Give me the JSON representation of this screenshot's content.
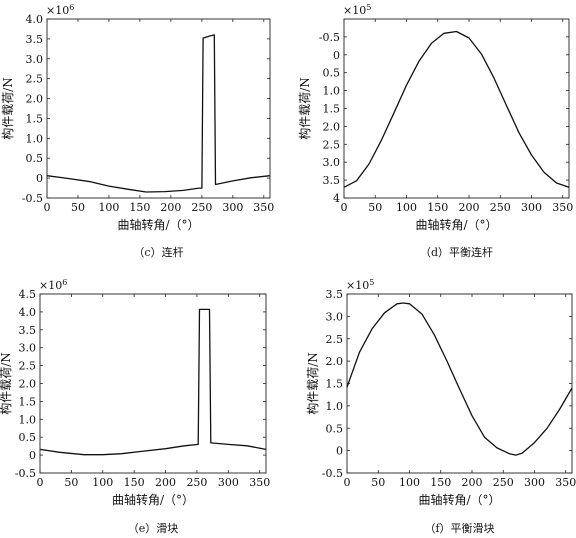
{
  "chart_data": [
    {
      "id": "c",
      "type": "line",
      "caption": "（c）连杆",
      "xlabel": "曲轴转角/（°）",
      "ylabel": "构件载荷/N",
      "exponent": "×10",
      "exponent_power": "6",
      "xlim": [
        0,
        360
      ],
      "ylim": [
        -0.5,
        4.0
      ],
      "xticks": [
        0,
        50,
        100,
        150,
        200,
        250,
        300,
        350
      ],
      "yticks": [
        -0.5,
        0,
        0.5,
        1.0,
        1.5,
        2.0,
        2.5,
        3.0,
        3.5,
        4.0
      ],
      "ytick_labels": [
        "-0.5",
        "0",
        "0.5",
        "1.0",
        "1.5",
        "2.0",
        "2.5",
        "3.0",
        "3.5",
        "4.0"
      ],
      "series": [
        {
          "x": [
            0,
            30,
            70,
            100,
            130,
            160,
            190,
            220,
            245,
            250,
            252,
            262,
            270,
            272,
            300,
            330,
            360
          ],
          "y": [
            0.06,
            0.0,
            -0.09,
            -0.2,
            -0.28,
            -0.35,
            -0.34,
            -0.31,
            -0.25,
            -0.25,
            3.52,
            3.57,
            3.6,
            -0.16,
            -0.07,
            0.01,
            0.06
          ]
        }
      ]
    },
    {
      "id": "d",
      "type": "line",
      "caption": "（d）平衡连杆",
      "xlabel": "曲轴转角/（°）",
      "ylabel": "构件载荷/N",
      "exponent": "×10",
      "exponent_power": "5",
      "xlim": [
        0,
        360
      ],
      "ylim": [
        -4.0,
        1.0
      ],
      "yreverse": true,
      "xticks": [
        0,
        50,
        100,
        150,
        200,
        250,
        300,
        350
      ],
      "yticks": [
        0.5,
        0,
        -0.5,
        -1.0,
        -1.5,
        -2.0,
        -2.5,
        -3.0,
        -3.5,
        -4.0
      ],
      "ytick_labels": [
        "-0.5",
        "0",
        "0.5",
        "1.0",
        "1.5",
        "2.0",
        "2.5",
        "3.0",
        "3.5",
        "4"
      ],
      "series": [
        {
          "x": [
            0,
            20,
            40,
            60,
            80,
            100,
            120,
            140,
            160,
            180,
            200,
            220,
            240,
            260,
            280,
            300,
            320,
            340,
            360
          ],
          "y": [
            -3.7,
            -3.52,
            -3.05,
            -2.38,
            -1.62,
            -0.85,
            -0.18,
            0.32,
            0.6,
            0.65,
            0.47,
            0.02,
            -0.65,
            -1.42,
            -2.18,
            -2.8,
            -3.28,
            -3.58,
            -3.7
          ]
        }
      ]
    },
    {
      "id": "e",
      "type": "line",
      "caption": "（e）滑块",
      "xlabel": "曲轴转角/（°）",
      "ylabel": "构件载荷/N",
      "exponent": "×10",
      "exponent_power": "6",
      "xlim": [
        0,
        360
      ],
      "ylim": [
        -0.5,
        4.5
      ],
      "xticks": [
        0,
        50,
        100,
        150,
        200,
        250,
        300,
        350
      ],
      "yticks": [
        -0.5,
        0,
        0.5,
        1.0,
        1.5,
        2.0,
        2.5,
        3.0,
        3.5,
        4.0,
        4.5
      ],
      "ytick_labels": [
        "-0.5",
        "0",
        "0.5",
        "1.0",
        "1.5",
        "2.0",
        "2.5",
        "3.0",
        "3.5",
        "4.0",
        "4.5"
      ],
      "series": [
        {
          "x": [
            0,
            30,
            70,
            100,
            130,
            160,
            200,
            230,
            252,
            254,
            270,
            272,
            300,
            330,
            360
          ],
          "y": [
            0.16,
            0.08,
            0.01,
            0.01,
            0.04,
            0.1,
            0.18,
            0.26,
            0.3,
            4.07,
            4.07,
            0.34,
            0.3,
            0.26,
            0.16
          ]
        }
      ]
    },
    {
      "id": "f",
      "type": "line",
      "caption": "（f）平衡滑块",
      "xlabel": "曲轴转角/（°）",
      "ylabel": "构件载荷/N",
      "exponent": "×10",
      "exponent_power": "5",
      "xlim": [
        0,
        360
      ],
      "ylim": [
        -0.5,
        3.5
      ],
      "xticks": [
        0,
        50,
        100,
        150,
        200,
        250,
        300,
        350
      ],
      "yticks": [
        -0.5,
        0,
        0.5,
        1.0,
        1.5,
        2.0,
        2.5,
        3.0,
        3.5
      ],
      "ytick_labels": [
        "-0.5",
        "0",
        "0.5",
        "1.0",
        "1.5",
        "2.0",
        "2.5",
        "3.0",
        "3.5"
      ],
      "series": [
        {
          "x": [
            0,
            20,
            40,
            60,
            80,
            90,
            100,
            120,
            140,
            160,
            180,
            200,
            220,
            240,
            260,
            270,
            280,
            300,
            320,
            340,
            360
          ],
          "y": [
            1.42,
            2.2,
            2.72,
            3.08,
            3.28,
            3.3,
            3.28,
            3.05,
            2.58,
            2.0,
            1.38,
            0.78,
            0.3,
            0.06,
            -0.07,
            -0.1,
            -0.06,
            0.18,
            0.5,
            0.92,
            1.4
          ]
        }
      ]
    }
  ]
}
